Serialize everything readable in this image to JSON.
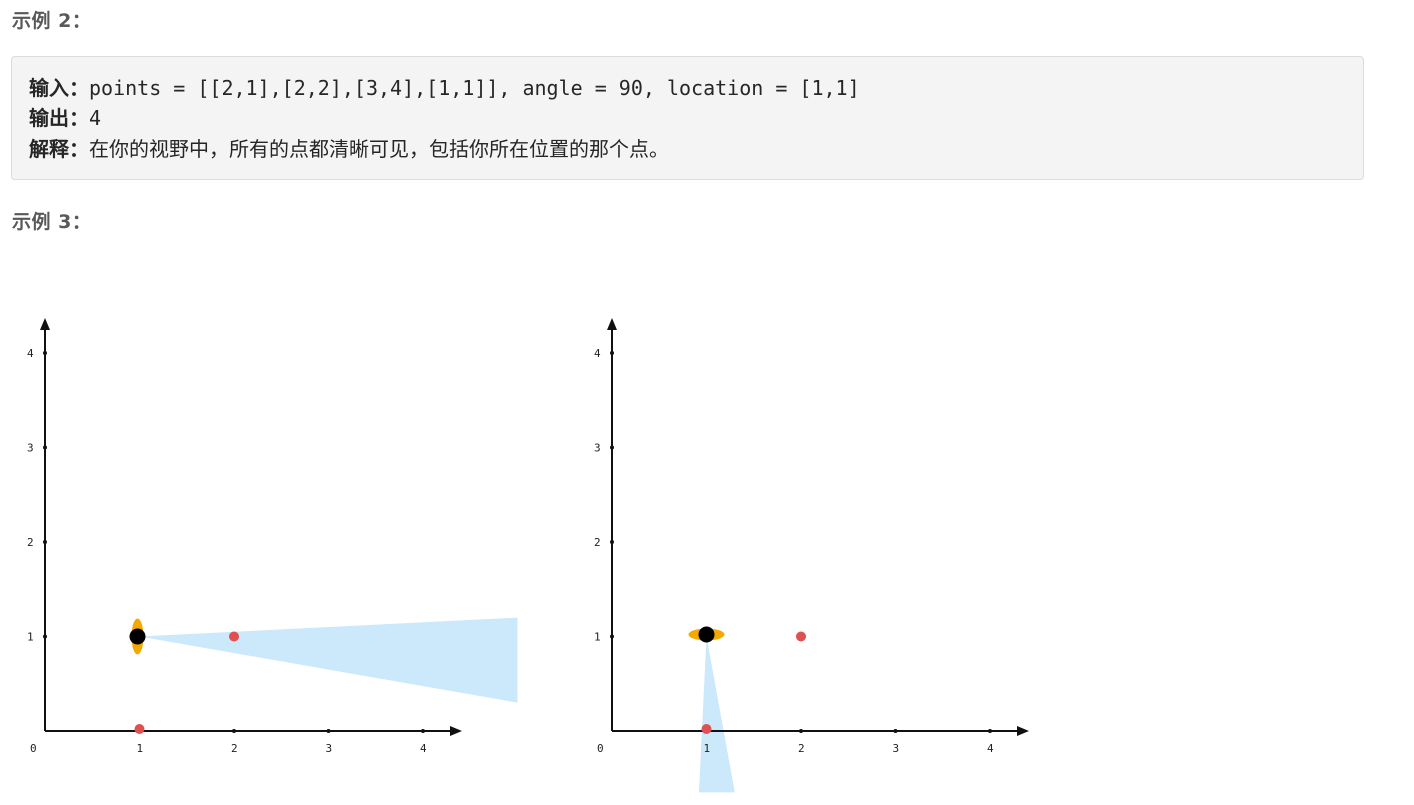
{
  "example2": {
    "heading": "示例 2：",
    "input_label": "输入：",
    "input_value": "points = [[2,1],[2,2],[3,4],[1,1]], angle = 90, location = [1,1]",
    "output_label": "输出：",
    "output_value": "4",
    "explain_label": "解释：",
    "explain_value": "在你的视野中，所有的点都清晰可见，包括你所在位置的那个点。"
  },
  "example3": {
    "heading": "示例 3："
  },
  "chart_data": [
    {
      "type": "scatter",
      "title": "",
      "xlabel": "",
      "ylabel": "",
      "xlim": [
        0,
        4
      ],
      "ylim": [
        0,
        4
      ],
      "x_ticks": [
        "0",
        "1",
        "2",
        "3",
        "4"
      ],
      "y_ticks": [
        "1",
        "2",
        "3",
        "4"
      ],
      "location": [
        1,
        1
      ],
      "points": [
        [
          2,
          1
        ],
        [
          1,
          0
        ]
      ],
      "view_cone": "toward +x, narrow",
      "colors": {
        "points": "#e05050",
        "location": "#000000",
        "viewer": "#f5a800",
        "cone": "#cce8fb"
      }
    },
    {
      "type": "scatter",
      "title": "",
      "xlabel": "",
      "ylabel": "",
      "xlim": [
        0,
        4
      ],
      "ylim": [
        0,
        4
      ],
      "x_ticks": [
        "0",
        "1",
        "2",
        "3",
        "4"
      ],
      "y_ticks": [
        "1",
        "2",
        "3",
        "4"
      ],
      "location": [
        1,
        1
      ],
      "points": [
        [
          2,
          1
        ],
        [
          1,
          0
        ]
      ],
      "view_cone": "toward -y, narrow",
      "colors": {
        "points": "#e05050",
        "location": "#000000",
        "viewer": "#f5a800",
        "cone": "#cce8fb"
      }
    }
  ]
}
